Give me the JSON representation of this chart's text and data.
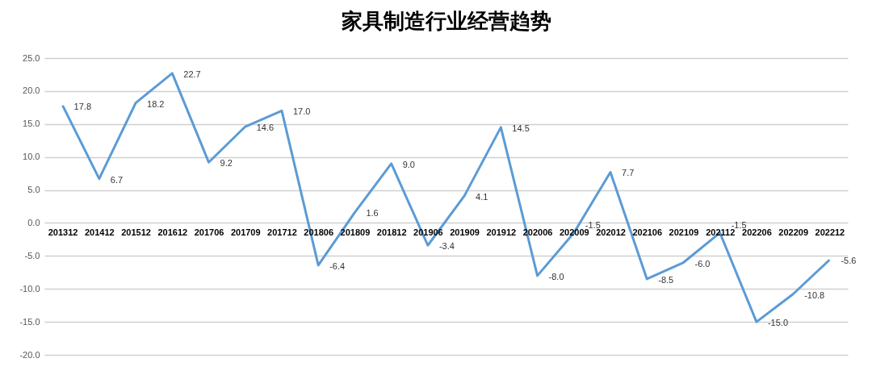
{
  "chart_data": {
    "type": "line",
    "title": "家具制造行业经营趋势",
    "categories": [
      "201312",
      "201412",
      "201512",
      "201612",
      "201706",
      "201709",
      "201712",
      "201806",
      "201809",
      "201812",
      "201906",
      "201909",
      "201912",
      "202006",
      "202009",
      "202012",
      "202106",
      "202109",
      "202112",
      "202206",
      "202209",
      "202212"
    ],
    "series": [
      {
        "color": "#5b9bd5",
        "values": [
          17.8,
          6.7,
          18.2,
          22.7,
          9.2,
          14.6,
          17.0,
          -6.4,
          1.6,
          9.0,
          -3.4,
          4.1,
          14.5,
          -8.0,
          -1.5,
          7.7,
          -8.5,
          -6.0,
          -1.5,
          -15.0,
          -10.8,
          -5.6
        ],
        "value_labels": [
          "17.8",
          "6.7",
          "18.2",
          "22.7",
          "9.2",
          "14.6",
          "17.0",
          "-6.4",
          "1.6",
          "9.0",
          "-3.4",
          "4.1",
          "14.5",
          "-8.0",
          "-1.5",
          "7.7",
          "-8.5",
          "-6.0",
          "-1.5",
          "-15.0",
          "-10.8",
          "-5.6"
        ]
      }
    ],
    "ylim": [
      -20,
      25
    ],
    "yticks": [
      {
        "value": -20,
        "label": "-20.0"
      },
      {
        "value": -15,
        "label": "-15.0"
      },
      {
        "value": -10,
        "label": "-10.0"
      },
      {
        "value": -5,
        "label": "-5.0"
      },
      {
        "value": 0,
        "label": "0.0"
      },
      {
        "value": 5,
        "label": "5.0"
      },
      {
        "value": 10,
        "label": "10.0"
      },
      {
        "value": 15,
        "label": "15.0"
      },
      {
        "value": 20,
        "label": "20.0"
      },
      {
        "value": 25,
        "label": "25.0"
      }
    ],
    "grid": "y",
    "marker": "none",
    "line_style": "solid",
    "legend": false
  }
}
